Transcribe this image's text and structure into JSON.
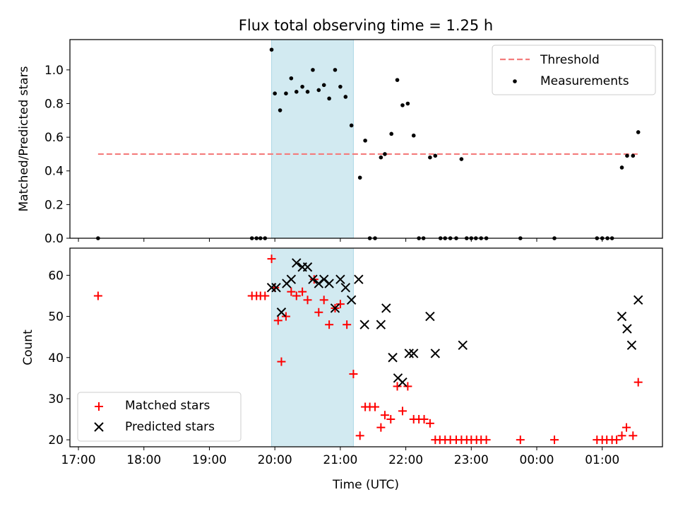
{
  "title": "Flux total observing time = 1.25 h",
  "colors": {
    "threshold": "#f47c7c",
    "measurement": "#000000",
    "matched": "#ff0000",
    "predicted": "#000000",
    "observing_window": "#add8e6"
  },
  "chart_data": [
    {
      "type": "scatter",
      "panel": "top",
      "ylabel": "Matched/Predicted stars",
      "xlim": [
        16.87,
        25.92
      ],
      "ylim": [
        0,
        1.18
      ],
      "x_tick_values": [
        17,
        18,
        19,
        20,
        21,
        22,
        23,
        24,
        25
      ],
      "y_ticks": [
        "0.0",
        "0.2",
        "0.4",
        "0.6",
        "0.8",
        "1.0"
      ],
      "y_tick_values": [
        0,
        0.2,
        0.4,
        0.6,
        0.8,
        1.0
      ],
      "shaded_interval": [
        19.95,
        21.2
      ],
      "legend": [
        "Threshold",
        "Measurements"
      ],
      "legend_loc": "upper right",
      "threshold": {
        "name": "Threshold",
        "y": 0.5,
        "x_range": [
          17.3,
          25.55
        ]
      },
      "series": [
        {
          "name": "Measurements",
          "marker": "dot",
          "points": [
            [
              17.3,
              0
            ],
            [
              19.65,
              0
            ],
            [
              19.72,
              0
            ],
            [
              19.78,
              0
            ],
            [
              19.85,
              0
            ],
            [
              19.95,
              1.12
            ],
            [
              20.0,
              0.86
            ],
            [
              20.08,
              0.76
            ],
            [
              20.17,
              0.86
            ],
            [
              20.25,
              0.95
            ],
            [
              20.33,
              0.87
            ],
            [
              20.42,
              0.9
            ],
            [
              20.5,
              0.87
            ],
            [
              20.58,
              1.0
            ],
            [
              20.67,
              0.88
            ],
            [
              20.75,
              0.91
            ],
            [
              20.83,
              0.83
            ],
            [
              20.92,
              1.0
            ],
            [
              21.0,
              0.9
            ],
            [
              21.08,
              0.84
            ],
            [
              21.17,
              0.67
            ],
            [
              21.3,
              0.36
            ],
            [
              21.38,
              0.58
            ],
            [
              21.45,
              0
            ],
            [
              21.53,
              0
            ],
            [
              21.62,
              0.48
            ],
            [
              21.68,
              0.5
            ],
            [
              21.78,
              0.62
            ],
            [
              21.87,
              0.94
            ],
            [
              21.95,
              0.79
            ],
            [
              22.03,
              0.8
            ],
            [
              22.12,
              0.61
            ],
            [
              22.2,
              0
            ],
            [
              22.27,
              0
            ],
            [
              22.37,
              0.48
            ],
            [
              22.45,
              0.49
            ],
            [
              22.53,
              0
            ],
            [
              22.6,
              0
            ],
            [
              22.68,
              0
            ],
            [
              22.77,
              0
            ],
            [
              22.85,
              0.47
            ],
            [
              22.93,
              0
            ],
            [
              23.0,
              0
            ],
            [
              23.07,
              0
            ],
            [
              23.15,
              0
            ],
            [
              23.23,
              0
            ],
            [
              23.75,
              0
            ],
            [
              24.27,
              0
            ],
            [
              24.92,
              0
            ],
            [
              25.0,
              0
            ],
            [
              25.08,
              0
            ],
            [
              25.15,
              0
            ],
            [
              25.3,
              0.42
            ],
            [
              25.38,
              0.49
            ],
            [
              25.47,
              0.49
            ],
            [
              25.55,
              0.63
            ]
          ]
        }
      ]
    },
    {
      "type": "scatter",
      "panel": "bottom",
      "xlabel": "Time (UTC)",
      "ylabel": "Count",
      "xlim": [
        16.87,
        25.92
      ],
      "ylim": [
        18.3,
        66.6
      ],
      "x_ticks": [
        "17:00",
        "18:00",
        "19:00",
        "20:00",
        "21:00",
        "22:00",
        "23:00",
        "00:00",
        "01:00"
      ],
      "x_tick_values": [
        17,
        18,
        19,
        20,
        21,
        22,
        23,
        24,
        25
      ],
      "y_ticks": [
        "20",
        "30",
        "40",
        "50",
        "60"
      ],
      "y_tick_values": [
        20,
        30,
        40,
        50,
        60
      ],
      "shaded_interval": [
        19.95,
        21.2
      ],
      "legend": [
        "Matched stars",
        "Predicted stars"
      ],
      "legend_loc": "lower left",
      "series": [
        {
          "name": "Matched stars",
          "marker": "plus",
          "points": [
            [
              17.3,
              55
            ],
            [
              19.65,
              55
            ],
            [
              19.72,
              55
            ],
            [
              19.78,
              55
            ],
            [
              19.85,
              55
            ],
            [
              19.95,
              64
            ],
            [
              20.0,
              57
            ],
            [
              20.05,
              49
            ],
            [
              20.1,
              39
            ],
            [
              20.17,
              50
            ],
            [
              20.25,
              56
            ],
            [
              20.33,
              55
            ],
            [
              20.42,
              56
            ],
            [
              20.5,
              54
            ],
            [
              20.6,
              59
            ],
            [
              20.67,
              51
            ],
            [
              20.75,
              54
            ],
            [
              20.83,
              48
            ],
            [
              20.92,
              52
            ],
            [
              21.0,
              53
            ],
            [
              21.1,
              48
            ],
            [
              21.2,
              36
            ],
            [
              21.3,
              21
            ],
            [
              21.38,
              28
            ],
            [
              21.45,
              28
            ],
            [
              21.53,
              28
            ],
            [
              21.62,
              23
            ],
            [
              21.68,
              26
            ],
            [
              21.77,
              25
            ],
            [
              21.87,
              33
            ],
            [
              21.95,
              27
            ],
            [
              22.03,
              33
            ],
            [
              22.12,
              25
            ],
            [
              22.2,
              25
            ],
            [
              22.28,
              25
            ],
            [
              22.37,
              24
            ],
            [
              22.45,
              20
            ],
            [
              22.52,
              20
            ],
            [
              22.6,
              20
            ],
            [
              22.68,
              20
            ],
            [
              22.77,
              20
            ],
            [
              22.85,
              20
            ],
            [
              22.93,
              20
            ],
            [
              23.0,
              20
            ],
            [
              23.08,
              20
            ],
            [
              23.15,
              20
            ],
            [
              23.23,
              20
            ],
            [
              23.75,
              20
            ],
            [
              24.27,
              20
            ],
            [
              24.92,
              20
            ],
            [
              25.0,
              20
            ],
            [
              25.07,
              20
            ],
            [
              25.15,
              20
            ],
            [
              25.22,
              20
            ],
            [
              25.3,
              21
            ],
            [
              25.37,
              23
            ],
            [
              25.47,
              21
            ],
            [
              25.55,
              34
            ]
          ]
        },
        {
          "name": "Predicted stars",
          "marker": "x",
          "points": [
            [
              19.95,
              57
            ],
            [
              20.02,
              57
            ],
            [
              20.1,
              51
            ],
            [
              20.18,
              58
            ],
            [
              20.25,
              59
            ],
            [
              20.33,
              63
            ],
            [
              20.42,
              62
            ],
            [
              20.5,
              62
            ],
            [
              20.58,
              59
            ],
            [
              20.67,
              58
            ],
            [
              20.75,
              59
            ],
            [
              20.83,
              58
            ],
            [
              20.92,
              52
            ],
            [
              21.0,
              59
            ],
            [
              21.08,
              57
            ],
            [
              21.17,
              54
            ],
            [
              21.28,
              59
            ],
            [
              21.37,
              48
            ],
            [
              21.62,
              48
            ],
            [
              21.7,
              52
            ],
            [
              21.8,
              40
            ],
            [
              21.88,
              35
            ],
            [
              21.95,
              34
            ],
            [
              22.05,
              41
            ],
            [
              22.12,
              41
            ],
            [
              22.37,
              50
            ],
            [
              22.45,
              41
            ],
            [
              22.87,
              43
            ],
            [
              25.3,
              50
            ],
            [
              25.38,
              47
            ],
            [
              25.45,
              43
            ],
            [
              25.55,
              54
            ]
          ]
        }
      ]
    }
  ]
}
